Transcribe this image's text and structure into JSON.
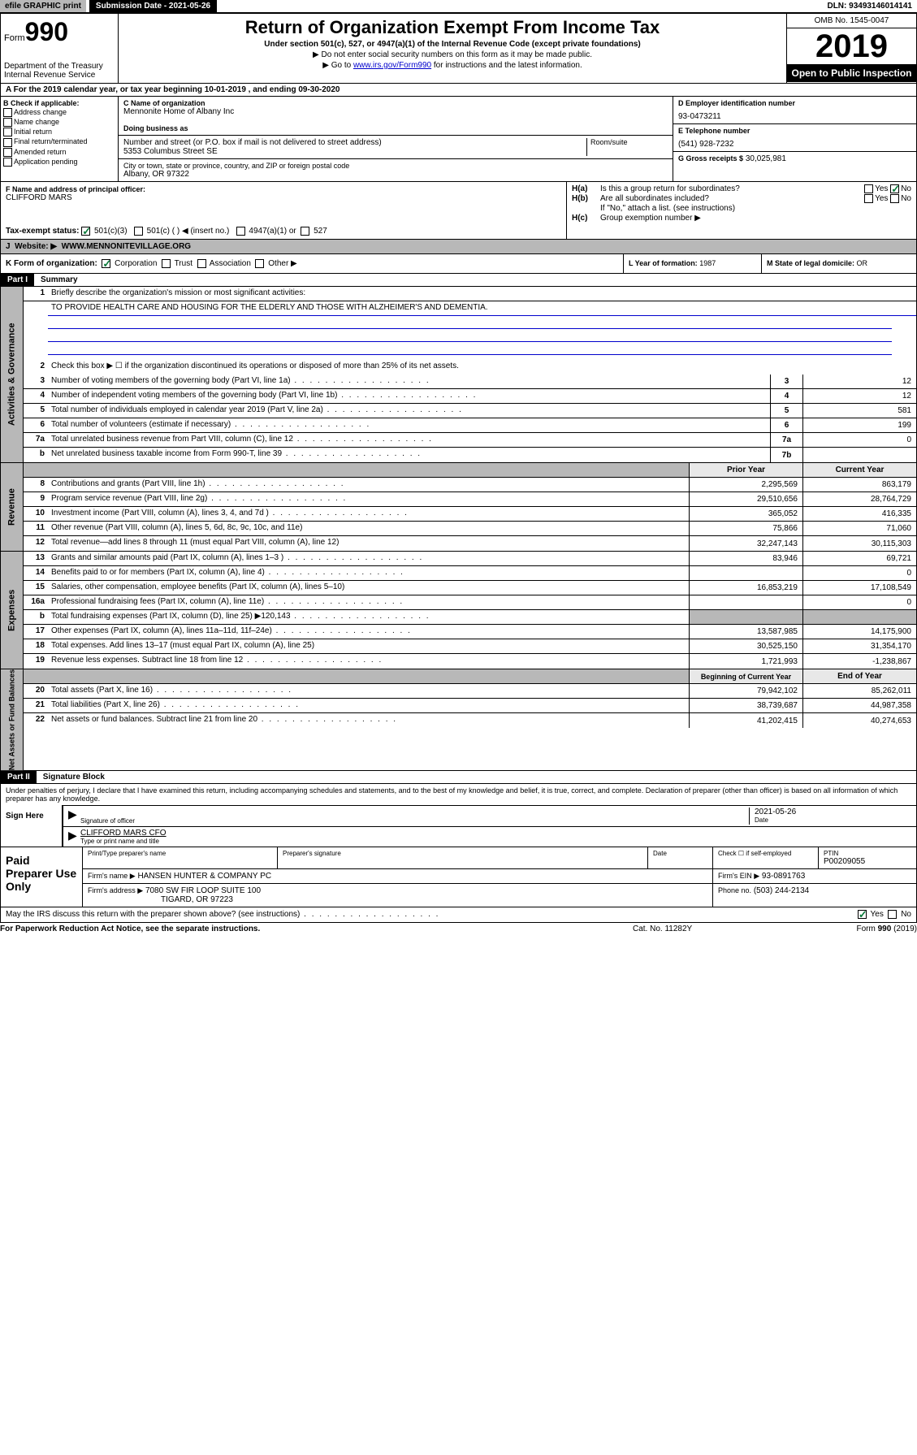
{
  "topbar": {
    "efile": "efile GRAPHIC print",
    "sub_label": "Submission Date - 2021-05-26",
    "dln": "DLN: 93493146014141"
  },
  "header": {
    "form_prefix": "Form",
    "form_num": "990",
    "dept": "Department of the Treasury Internal Revenue Service",
    "title": "Return of Organization Exempt From Income Tax",
    "subtitle": "Under section 501(c), 527, or 4947(a)(1) of the Internal Revenue Code (except private foundations)",
    "note1": "▶ Do not enter social security numbers on this form as it may be made public.",
    "note2_pre": "▶ Go to ",
    "note2_link": "www.irs.gov/Form990",
    "note2_post": " for instructions and the latest information.",
    "omb": "OMB No. 1545-0047",
    "year": "2019",
    "open": "Open to Public Inspection"
  },
  "taxyear": "For the 2019 calendar year, or tax year beginning 10-01-2019    , and ending 09-30-2020",
  "sectionB": {
    "hdr": "B Check if applicable:",
    "items": [
      "Address change",
      "Name change",
      "Initial return",
      "Final return/terminated",
      "Amended return",
      "Application pending"
    ]
  },
  "sectionC": {
    "name_lbl": "C Name of organization",
    "name": "Mennonite Home of Albany Inc",
    "dba_lbl": "Doing business as",
    "addr_lbl": "Number and street (or P.O. box if mail is not delivered to street address)",
    "room_lbl": "Room/suite",
    "addr": "5353 Columbus Street SE",
    "city_lbl": "City or town, state or province, country, and ZIP or foreign postal code",
    "city": "Albany, OR  97322"
  },
  "sectionD": {
    "lbl": "D Employer identification number",
    "val": "93-0473211"
  },
  "sectionE": {
    "lbl": "E Telephone number",
    "val": "(541) 928-7232"
  },
  "sectionG": {
    "lbl": "G Gross receipts $",
    "val": "30,025,981"
  },
  "sectionF": {
    "lbl": "F  Name and address of principal officer:",
    "name": "CLIFFORD MARS"
  },
  "sectionH": {
    "a": "Is this a group return for subordinates?",
    "b": "Are all subordinates included?",
    "b_note": "If \"No,\" attach a list. (see instructions)",
    "c": "Group exemption number ▶",
    "yes": "Yes",
    "no": "No"
  },
  "sectionI": {
    "lbl": "Tax-exempt status:",
    "c3": "501(c)(3)",
    "c": "501(c) (  ) ◀ (insert no.)",
    "a1": "4947(a)(1) or",
    "527": "527"
  },
  "sectionJ": {
    "lbl": "Website: ▶",
    "val": "WWW.MENNONITEVILLAGE.ORG"
  },
  "sectionK": {
    "lbl": "K Form of organization:",
    "corp": "Corporation",
    "trust": "Trust",
    "assoc": "Association",
    "other": "Other ▶"
  },
  "sectionL": {
    "lbl": "L Year of formation:",
    "val": "1987"
  },
  "sectionM": {
    "lbl": "M State of legal domicile:",
    "val": "OR"
  },
  "part1": {
    "hdr": "Part I",
    "title": "Summary"
  },
  "summary": {
    "q1": "Briefly describe the organization's mission or most significant activities:",
    "mission": "TO PROVIDE HEALTH CARE AND HOUSING FOR THE ELDERLY AND THOSE WITH ALZHEIMER'S AND DEMENTIA.",
    "q2": "Check this box ▶ ☐  if the organization discontinued its operations or disposed of more than 25% of its net assets.",
    "rows_gov": [
      {
        "n": "3",
        "d": "Number of voting members of the governing body (Part VI, line 1a)",
        "box": "3",
        "v": "12"
      },
      {
        "n": "4",
        "d": "Number of independent voting members of the governing body (Part VI, line 1b)",
        "box": "4",
        "v": "12"
      },
      {
        "n": "5",
        "d": "Total number of individuals employed in calendar year 2019 (Part V, line 2a)",
        "box": "5",
        "v": "581"
      },
      {
        "n": "6",
        "d": "Total number of volunteers (estimate if necessary)",
        "box": "6",
        "v": "199"
      },
      {
        "n": "7a",
        "d": "Total unrelated business revenue from Part VIII, column (C), line 12",
        "box": "7a",
        "v": "0"
      },
      {
        "n": "b",
        "d": "Net unrelated business taxable income from Form 990-T, line 39",
        "box": "7b",
        "v": ""
      }
    ],
    "col_prior": "Prior Year",
    "col_current": "Current Year",
    "rows_rev": [
      {
        "n": "8",
        "d": "Contributions and grants (Part VIII, line 1h)",
        "p": "2,295,569",
        "c": "863,179"
      },
      {
        "n": "9",
        "d": "Program service revenue (Part VIII, line 2g)",
        "p": "29,510,656",
        "c": "28,764,729"
      },
      {
        "n": "10",
        "d": "Investment income (Part VIII, column (A), lines 3, 4, and 7d )",
        "p": "365,052",
        "c": "416,335"
      },
      {
        "n": "11",
        "d": "Other revenue (Part VIII, column (A), lines 5, 6d, 8c, 9c, 10c, and 11e)",
        "p": "75,866",
        "c": "71,060"
      },
      {
        "n": "12",
        "d": "Total revenue—add lines 8 through 11 (must equal Part VIII, column (A), line 12)",
        "p": "32,247,143",
        "c": "30,115,303"
      }
    ],
    "rows_exp": [
      {
        "n": "13",
        "d": "Grants and similar amounts paid (Part IX, column (A), lines 1–3 )",
        "p": "83,946",
        "c": "69,721"
      },
      {
        "n": "14",
        "d": "Benefits paid to or for members (Part IX, column (A), line 4)",
        "p": "",
        "c": "0"
      },
      {
        "n": "15",
        "d": "Salaries, other compensation, employee benefits (Part IX, column (A), lines 5–10)",
        "p": "16,853,219",
        "c": "17,108,549"
      },
      {
        "n": "16a",
        "d": "Professional fundraising fees (Part IX, column (A), line 11e)",
        "p": "",
        "c": "0"
      },
      {
        "n": "b",
        "d": "Total fundraising expenses (Part IX, column (D), line 25) ▶120,143",
        "p": "gray",
        "c": "gray"
      },
      {
        "n": "17",
        "d": "Other expenses (Part IX, column (A), lines 11a–11d, 11f–24e)",
        "p": "13,587,985",
        "c": "14,175,900"
      },
      {
        "n": "18",
        "d": "Total expenses. Add lines 13–17 (must equal Part IX, column (A), line 25)",
        "p": "30,525,150",
        "c": "31,354,170"
      },
      {
        "n": "19",
        "d": "Revenue less expenses. Subtract line 18 from line 12",
        "p": "1,721,993",
        "c": "-1,238,867"
      }
    ],
    "col_begin": "Beginning of Current Year",
    "col_end": "End of Year",
    "rows_net": [
      {
        "n": "20",
        "d": "Total assets (Part X, line 16)",
        "p": "79,942,102",
        "c": "85,262,011"
      },
      {
        "n": "21",
        "d": "Total liabilities (Part X, line 26)",
        "p": "38,739,687",
        "c": "44,987,358"
      },
      {
        "n": "22",
        "d": "Net assets or fund balances. Subtract line 21 from line 20",
        "p": "41,202,415",
        "c": "40,274,653"
      }
    ]
  },
  "side_labels": {
    "gov": "Activities & Governance",
    "rev": "Revenue",
    "exp": "Expenses",
    "net": "Net Assets or Fund Balances"
  },
  "part2": {
    "hdr": "Part II",
    "title": "Signature Block"
  },
  "perjury": "Under penalties of perjury, I declare that I have examined this return, including accompanying schedules and statements, and to the best of my knowledge and belief, it is true, correct, and complete. Declaration of preparer (other than officer) is based on all information of which preparer has any knowledge.",
  "sign": {
    "here": "Sign Here",
    "sig_lbl": "Signature of officer",
    "date_lbl": "Date",
    "date": "2021-05-26",
    "name": "CLIFFORD MARS CFO",
    "name_lbl": "Type or print name and title"
  },
  "preparer": {
    "left": "Paid Preparer Use Only",
    "print_lbl": "Print/Type preparer's name",
    "sig_lbl": "Preparer's signature",
    "date_lbl": "Date",
    "check_lbl": "Check ☐ if self-employed",
    "ptin_lbl": "PTIN",
    "ptin": "P00209055",
    "firm_name_lbl": "Firm's name    ▶",
    "firm_name": "HANSEN HUNTER & COMPANY PC",
    "firm_ein_lbl": "Firm's EIN ▶",
    "firm_ein": "93-0891763",
    "firm_addr_lbl": "Firm's address ▶",
    "firm_addr1": "7080 SW FIR LOOP SUITE 100",
    "firm_addr2": "TIGARD, OR  97223",
    "phone_lbl": "Phone no.",
    "phone": "(503) 244-2134"
  },
  "discuss": {
    "txt": "May the IRS discuss this return with the preparer shown above? (see instructions)",
    "yes": "Yes",
    "no": "No"
  },
  "footer": {
    "left": "For Paperwork Reduction Act Notice, see the separate instructions.",
    "mid": "Cat. No. 11282Y",
    "right": "Form 990 (2019)"
  }
}
